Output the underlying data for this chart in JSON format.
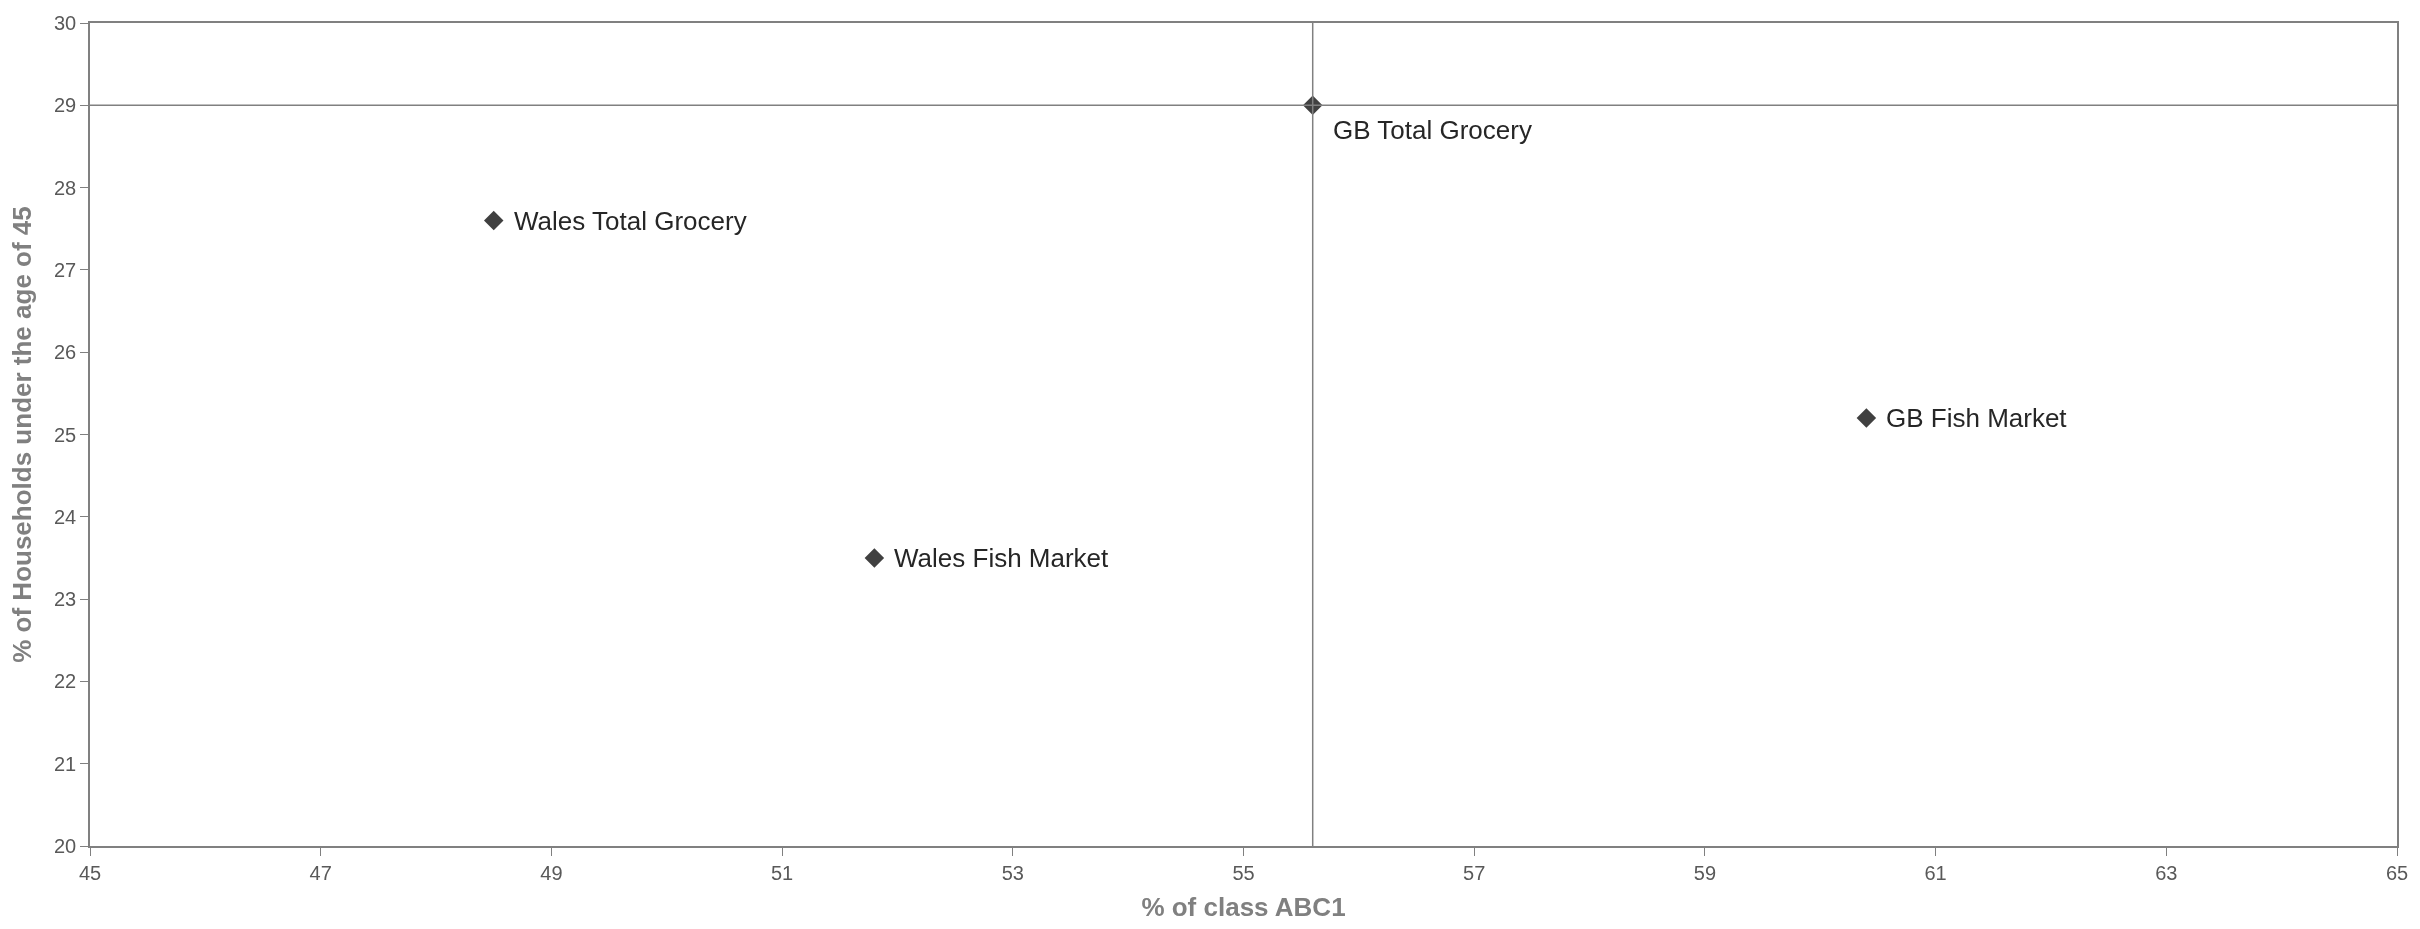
{
  "chart_data": {
    "type": "scatter",
    "xlabel": "% of class ABC1",
    "ylabel": "% of Households under the age of 45",
    "x": [
      48.5,
      51.8,
      55.6,
      60.4
    ],
    "series": [
      {
        "color": "#404040",
        "values": [
          27.6,
          23.5,
          29.0,
          25.2
        ]
      }
    ],
    "marker": "diamond",
    "xlim": [
      45,
      65
    ],
    "xticks": [
      45,
      47,
      49,
      51,
      53,
      55,
      57,
      59,
      61,
      63,
      65
    ],
    "ylim": [
      20,
      30
    ],
    "yticks": [
      20,
      21,
      22,
      23,
      24,
      25,
      26,
      27,
      28,
      29,
      30
    ],
    "ref_lines": [
      {
        "axis": "x",
        "value": 55.6,
        "color": "#808080"
      },
      {
        "axis": "y",
        "value": 29,
        "color": "#808080"
      }
    ],
    "annotations": [
      {
        "text": "Wales Total Grocery",
        "x": 48.5,
        "y": 27.6
      },
      {
        "text": "Wales Fish Market",
        "x": 51.8,
        "y": 23.5
      },
      {
        "text": "GB Total Grocery",
        "x": 55.6,
        "y": 29.0
      },
      {
        "text": "GB Fish Market",
        "x": 60.4,
        "y": 25.2
      }
    ]
  }
}
